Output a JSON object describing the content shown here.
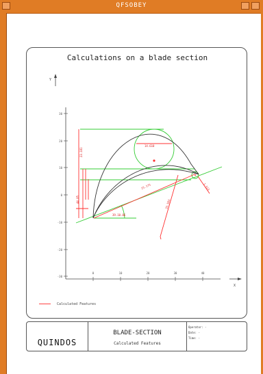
{
  "window": {
    "title": "QFSOBEY"
  },
  "sheet": {
    "title": "Calculations on a blade section",
    "legend": "Calculated Features"
  },
  "chart_data": {
    "type": "line",
    "title": "Calculations on a blade section",
    "xlabel": "X",
    "ylabel": "Y",
    "x_ticks": [
      "0",
      "10",
      "20",
      "30",
      "40"
    ],
    "y_ticks": [
      "30",
      "20",
      "10",
      "0",
      "-10",
      "-20",
      "-30"
    ],
    "xlim": [
      -10,
      48
    ],
    "ylim": [
      -32,
      35
    ],
    "feature_labels": [
      "14.610",
      "23.181",
      "25.175",
      "44.85",
      "39.10.06",
      "33.583",
      "1.513"
    ],
    "colors": {
      "features": "#ff3030",
      "geometry": "#33cc33",
      "profile": "#333333"
    }
  },
  "titleblock": {
    "logo": "QUINDOS",
    "line1": "BLADE-SECTION",
    "line2": "Calculated Features",
    "fields": [
      "Operator: -",
      "Date: -",
      "Time: -"
    ]
  }
}
